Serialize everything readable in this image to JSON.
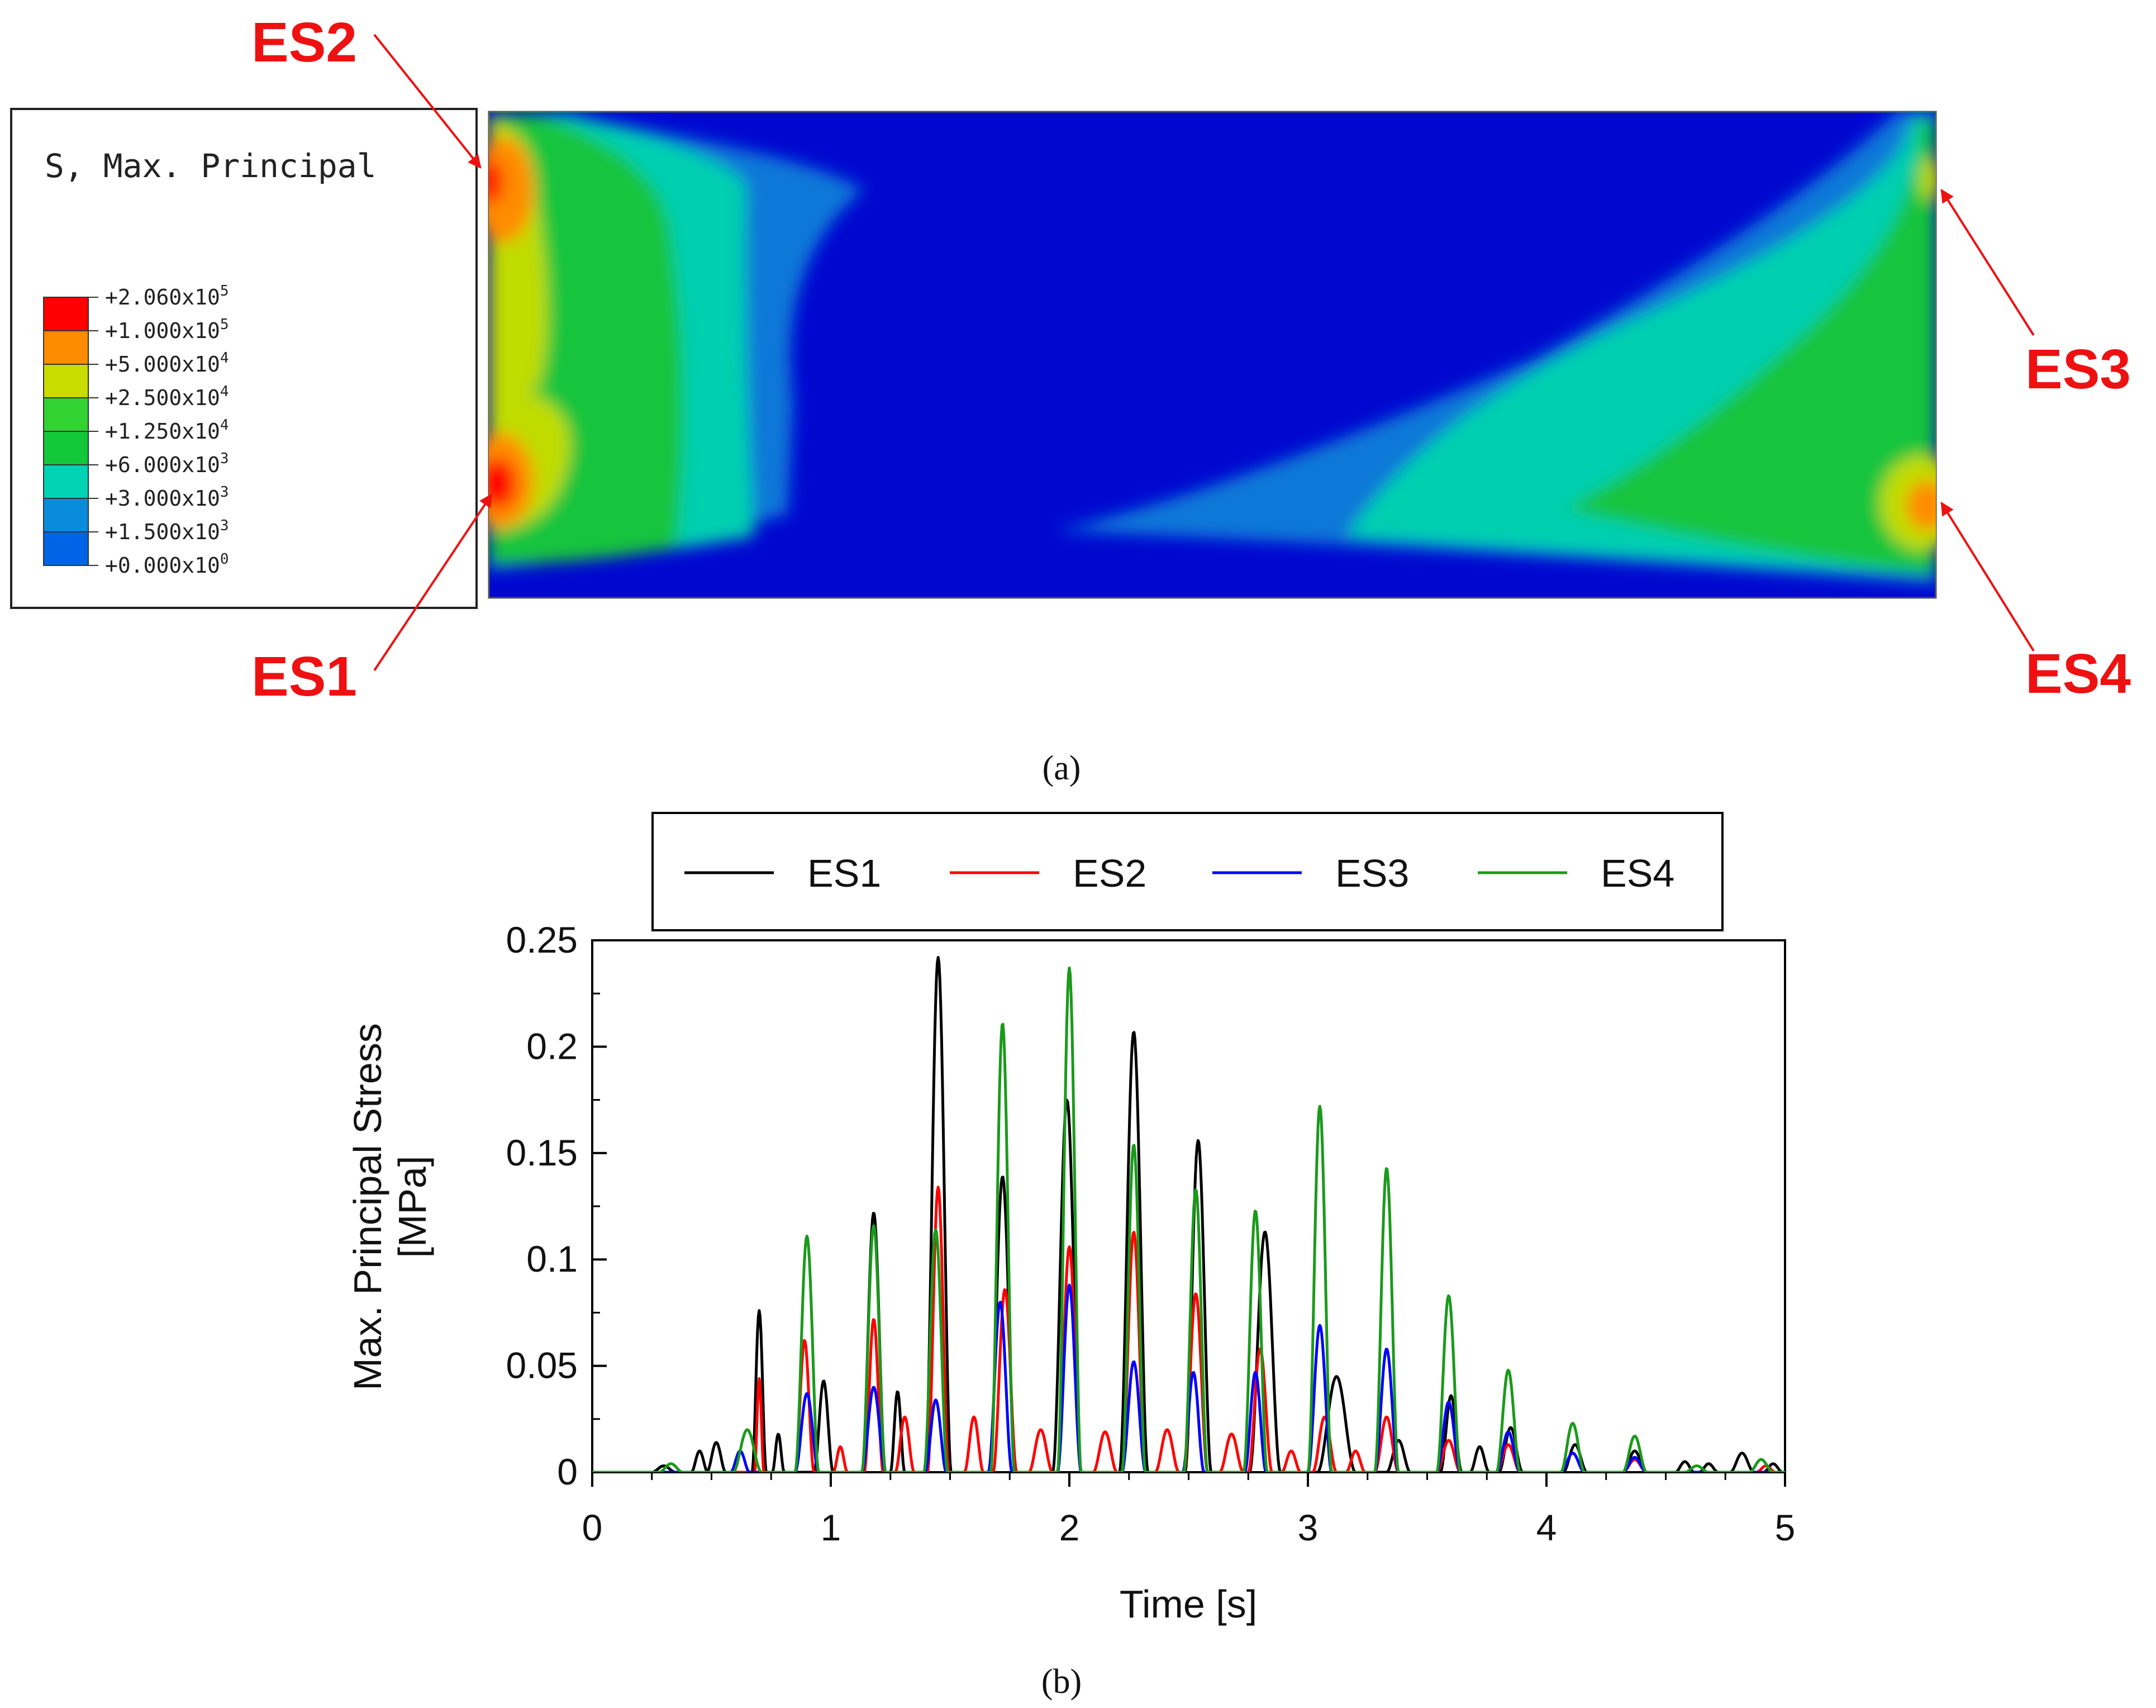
{
  "panel_a": {
    "caption": "(a)",
    "legend": {
      "title": "S, Max. Principal",
      "entries": [
        {
          "mantissa": "+2.060x10",
          "exp": "5",
          "color": "#ff0000"
        },
        {
          "mantissa": "+1.000x10",
          "exp": "5",
          "color": "#ff8c00"
        },
        {
          "mantissa": "+5.000x10",
          "exp": "4",
          "color": "#c8dc00"
        },
        {
          "mantissa": "+2.500x10",
          "exp": "4",
          "color": "#32d232"
        },
        {
          "mantissa": "+1.250x10",
          "exp": "4",
          "color": "#12c83a"
        },
        {
          "mantissa": "+6.000x10",
          "exp": "3",
          "color": "#00d2b4"
        },
        {
          "mantissa": "+3.000x10",
          "exp": "3",
          "color": "#0a8cdc"
        },
        {
          "mantissa": "+1.500x10",
          "exp": "3",
          "color": "#0064e6"
        },
        {
          "mantissa": "+0.000x10",
          "exp": "0",
          "color": "#0014d2"
        }
      ]
    },
    "callouts": {
      "es1": "ES1",
      "es2": "ES2",
      "es3": "ES3",
      "es4": "ES4"
    },
    "colors": {
      "accent": "#ee1111",
      "base": "#0008d0"
    }
  },
  "panel_b": {
    "caption": "(b)"
  },
  "chart_data": {
    "type": "line",
    "title": "",
    "xlabel": "Time [s]",
    "ylabel_line1": "Max. Principal Stress",
    "ylabel_line2": "[MPa]",
    "xlim": [
      0,
      5
    ],
    "ylim": [
      0,
      0.25
    ],
    "xticks": [
      0,
      1,
      2,
      3,
      4,
      5
    ],
    "xtick_labels": [
      "0",
      "1",
      "2",
      "3",
      "4",
      "5"
    ],
    "yticks": [
      0,
      0.05,
      0.1,
      0.15,
      0.2,
      0.25
    ],
    "ytick_labels": [
      "0",
      "0.05",
      "0.1",
      "0.15",
      "0.2",
      "0.25"
    ],
    "grid": false,
    "legend_position": "top",
    "series": [
      {
        "name": "ES1",
        "color": "#000000",
        "peaks": [
          [
            0.3,
            0.003,
            0.05
          ],
          [
            0.45,
            0.01,
            0.035
          ],
          [
            0.52,
            0.014,
            0.04
          ],
          [
            0.7,
            0.076,
            0.03
          ],
          [
            0.78,
            0.018,
            0.025
          ],
          [
            0.97,
            0.043,
            0.04
          ],
          [
            1.18,
            0.122,
            0.05
          ],
          [
            1.28,
            0.038,
            0.03
          ],
          [
            1.45,
            0.242,
            0.055
          ],
          [
            1.72,
            0.139,
            0.055
          ],
          [
            1.99,
            0.175,
            0.06
          ],
          [
            2.27,
            0.207,
            0.06
          ],
          [
            2.54,
            0.156,
            0.055
          ],
          [
            2.82,
            0.113,
            0.065
          ],
          [
            3.12,
            0.045,
            0.08
          ],
          [
            3.38,
            0.015,
            0.05
          ],
          [
            3.6,
            0.036,
            0.045
          ],
          [
            3.72,
            0.012,
            0.04
          ],
          [
            3.85,
            0.021,
            0.05
          ],
          [
            4.12,
            0.013,
            0.05
          ],
          [
            4.37,
            0.01,
            0.05
          ],
          [
            4.58,
            0.005,
            0.04
          ],
          [
            4.68,
            0.004,
            0.04
          ],
          [
            4.82,
            0.009,
            0.05
          ],
          [
            4.95,
            0.004,
            0.04
          ]
        ]
      },
      {
        "name": "ES2",
        "color": "#ff0000",
        "peaks": [
          [
            0.7,
            0.044,
            0.02
          ],
          [
            0.89,
            0.062,
            0.04
          ],
          [
            1.04,
            0.012,
            0.03
          ],
          [
            1.18,
            0.072,
            0.04
          ],
          [
            1.31,
            0.026,
            0.04
          ],
          [
            1.45,
            0.134,
            0.045
          ],
          [
            1.6,
            0.026,
            0.04
          ],
          [
            1.73,
            0.086,
            0.05
          ],
          [
            1.88,
            0.02,
            0.05
          ],
          [
            2.0,
            0.106,
            0.05
          ],
          [
            2.15,
            0.019,
            0.05
          ],
          [
            2.27,
            0.113,
            0.05
          ],
          [
            2.41,
            0.02,
            0.05
          ],
          [
            2.53,
            0.084,
            0.05
          ],
          [
            2.68,
            0.018,
            0.05
          ],
          [
            2.8,
            0.058,
            0.05
          ],
          [
            2.93,
            0.01,
            0.04
          ],
          [
            3.07,
            0.026,
            0.05
          ],
          [
            3.2,
            0.01,
            0.04
          ],
          [
            3.33,
            0.026,
            0.05
          ],
          [
            3.59,
            0.015,
            0.05
          ],
          [
            3.84,
            0.013,
            0.05
          ],
          [
            4.11,
            0.009,
            0.05
          ],
          [
            4.37,
            0.006,
            0.05
          ],
          [
            4.92,
            0.003,
            0.04
          ]
        ]
      },
      {
        "name": "ES3",
        "color": "#0000ff",
        "peaks": [
          [
            0.62,
            0.01,
            0.04
          ],
          [
            0.9,
            0.037,
            0.05
          ],
          [
            1.18,
            0.04,
            0.05
          ],
          [
            1.44,
            0.034,
            0.045
          ],
          [
            1.71,
            0.08,
            0.05
          ],
          [
            2.0,
            0.088,
            0.05
          ],
          [
            2.27,
            0.052,
            0.05
          ],
          [
            2.52,
            0.047,
            0.045
          ],
          [
            2.78,
            0.047,
            0.045
          ],
          [
            3.05,
            0.069,
            0.05
          ],
          [
            3.33,
            0.058,
            0.05
          ],
          [
            3.59,
            0.033,
            0.05
          ],
          [
            3.84,
            0.019,
            0.05
          ],
          [
            4.11,
            0.009,
            0.05
          ],
          [
            4.37,
            0.007,
            0.05
          ]
        ]
      },
      {
        "name": "ES4",
        "color": "#1a9a1a",
        "peaks": [
          [
            0.33,
            0.004,
            0.05
          ],
          [
            0.65,
            0.02,
            0.06
          ],
          [
            0.9,
            0.111,
            0.05
          ],
          [
            1.18,
            0.116,
            0.05
          ],
          [
            1.44,
            0.114,
            0.05
          ],
          [
            1.72,
            0.211,
            0.05
          ],
          [
            2.0,
            0.237,
            0.05
          ],
          [
            2.27,
            0.154,
            0.05
          ],
          [
            2.53,
            0.133,
            0.05
          ],
          [
            2.78,
            0.123,
            0.05
          ],
          [
            3.05,
            0.172,
            0.05
          ],
          [
            3.33,
            0.143,
            0.05
          ],
          [
            3.59,
            0.083,
            0.05
          ],
          [
            3.84,
            0.048,
            0.05
          ],
          [
            4.11,
            0.023,
            0.05
          ],
          [
            4.37,
            0.017,
            0.05
          ],
          [
            4.63,
            0.003,
            0.05
          ],
          [
            4.9,
            0.006,
            0.05
          ]
        ]
      }
    ]
  }
}
